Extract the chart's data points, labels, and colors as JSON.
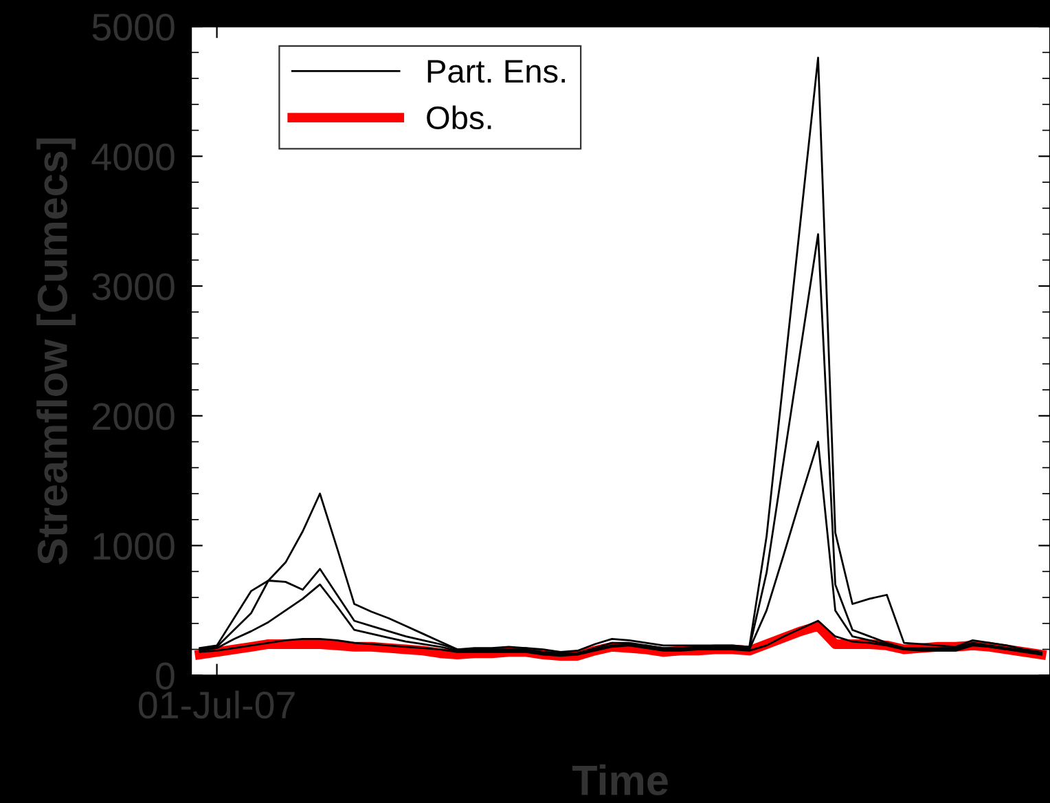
{
  "chart_data": {
    "type": "line",
    "xlabel": "Time",
    "ylabel": "Streamflow [Cumecs]",
    "categories": [
      null,
      "01-Jul-07",
      null,
      null,
      null,
      null,
      null,
      null,
      null,
      null,
      null,
      null,
      null,
      null,
      null,
      null,
      null,
      null,
      null,
      null,
      null,
      null,
      null,
      null,
      null,
      null,
      null,
      null,
      null,
      null,
      null,
      null,
      null,
      null,
      null,
      null,
      null,
      null,
      null,
      null,
      null,
      null,
      null,
      null,
      null,
      null,
      null,
      null,
      null,
      null
    ],
    "ylim": [
      0,
      5000
    ],
    "yticks": [
      0,
      {
        "value": 200,
        "label": null
      },
      {
        "value": 400,
        "label": null
      },
      {
        "value": 600,
        "label": null
      },
      {
        "value": 800,
        "label": null
      },
      1000,
      {
        "value": 1200,
        "label": null
      },
      {
        "value": 1400,
        "label": null
      },
      {
        "value": 1600,
        "label": null
      },
      {
        "value": 1800,
        "label": null
      },
      2000,
      {
        "value": 2200,
        "label": null
      },
      {
        "value": 2400,
        "label": null
      },
      {
        "value": 2600,
        "label": null
      },
      {
        "value": 2800,
        "label": null
      },
      3000,
      {
        "value": 3200,
        "label": null
      },
      {
        "value": 3400,
        "label": null
      },
      {
        "value": 3600,
        "label": null
      },
      {
        "value": 3800,
        "label": null
      },
      4000,
      {
        "value": 4200,
        "label": null
      },
      {
        "value": 4400,
        "label": null
      },
      {
        "value": 4600,
        "label": null
      },
      {
        "value": 4800,
        "label": null
      },
      5000
    ],
    "grid": false,
    "legend": "top left",
    "marker": "none",
    "line_style": "solid",
    "series": [
      {
        "name": "Part. Ens.",
        "color": "#000000",
        "values": [
          210,
          230,
          440,
          650,
          730,
          870,
          1110,
          1400,
          980,
          550,
          490,
          440,
          380,
          320,
          260,
          200,
          210,
          210,
          220,
          210,
          200,
          180,
          190,
          240,
          280,
          270,
          250,
          230,
          230,
          230,
          230,
          230,
          220,
          1070,
          2300,
          3530,
          4760,
          1100,
          550,
          590,
          620,
          250,
          240,
          230,
          220,
          270,
          250,
          230,
          200,
          180
        ]
      },
      {
        "color": "#000000",
        "values": [
          200,
          220,
          350,
          480,
          730,
          720,
          660,
          820,
          620,
          420,
          380,
          340,
          300,
          270,
          240,
          200,
          200,
          200,
          200,
          200,
          180,
          170,
          170,
          210,
          250,
          250,
          230,
          210,
          210,
          220,
          220,
          220,
          210,
          790,
          1660,
          2530,
          3400,
          700,
          350,
          300,
          250,
          210,
          210,
          210,
          210,
          250,
          230,
          210,
          190,
          170
        ]
      },
      {
        "color": "#000000",
        "values": [
          190,
          210,
          280,
          340,
          410,
          500,
          590,
          700,
          530,
          350,
          320,
          290,
          260,
          240,
          220,
          190,
          190,
          190,
          190,
          190,
          170,
          160,
          170,
          200,
          230,
          240,
          220,
          200,
          200,
          210,
          210,
          210,
          200,
          500,
          930,
          1370,
          1800,
          500,
          300,
          270,
          240,
          200,
          200,
          200,
          200,
          240,
          220,
          200,
          190,
          170
        ]
      },
      {
        "color": "#000000",
        "values": [
          180,
          190,
          210,
          230,
          250,
          270,
          280,
          280,
          270,
          250,
          240,
          230,
          220,
          210,
          200,
          180,
          180,
          180,
          180,
          180,
          160,
          150,
          160,
          190,
          220,
          230,
          210,
          190,
          190,
          200,
          200,
          200,
          190,
          230,
          300,
          360,
          420,
          300,
          260,
          250,
          230,
          200,
          190,
          190,
          190,
          230,
          220,
          200,
          180,
          160
        ]
      },
      {
        "name": "Obs.",
        "color": "#ff0000",
        "values": [
          160,
          180,
          200,
          220,
          240,
          240,
          240,
          240,
          230,
          220,
          220,
          210,
          200,
          190,
          170,
          160,
          170,
          170,
          180,
          180,
          160,
          150,
          150,
          190,
          220,
          210,
          200,
          180,
          190,
          190,
          200,
          200,
          190,
          240,
          290,
          340,
          380,
          240,
          240,
          240,
          230,
          200,
          210,
          220,
          220,
          230,
          220,
          200,
          180,
          160
        ]
      }
    ]
  }
}
